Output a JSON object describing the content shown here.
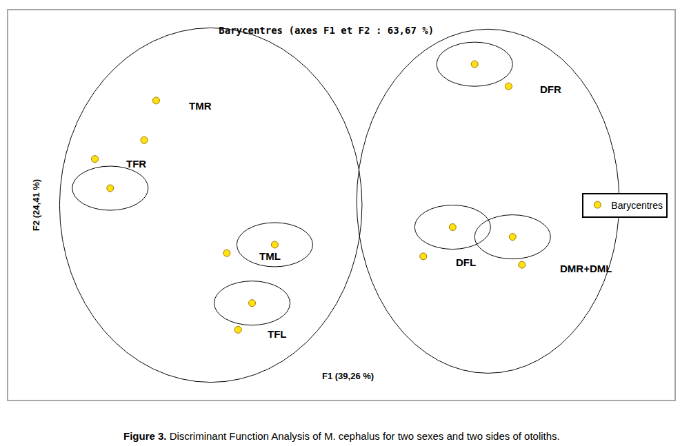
{
  "chart_data": {
    "type": "scatter",
    "title": "Barycentres (axes F1 et F2 : 63,67 %)",
    "x_label": "F1 (39,26 %)",
    "y_label": "F2 (24,41 %)",
    "caption": {
      "label": "Figure 3.",
      "text": "Discriminant Function Analysis of M. cephalus for two sexes and two sides of otoliths."
    },
    "xlim": [
      -5,
      5
    ],
    "ylim": [
      -3,
      3
    ],
    "tick_labels": false,
    "grid": false,
    "legend": "right",
    "series": [
      {
        "name": "Barycentres",
        "color": "#ffe011",
        "marker": "circle",
        "x": [
          -2.78,
          -2.96,
          -3.7,
          -3.47,
          -1.72,
          -1.0,
          -1.34,
          -1.55,
          2.0,
          2.51,
          1.67,
          1.23,
          2.57,
          2.71
        ],
        "values": [
          1.61,
          1.0,
          0.71,
          0.26,
          -0.74,
          -0.61,
          -1.51,
          -1.92,
          2.17,
          1.83,
          -0.34,
          -0.79,
          -0.49,
          -0.92
        ]
      }
    ],
    "ellipses": [
      {
        "x": -1.96,
        "y": 0.0,
        "rx": 2.27,
        "ry": 2.73
      },
      {
        "x": 2.2,
        "y": 0.06,
        "rx": 1.97,
        "ry": 2.65
      },
      {
        "x": -3.47,
        "y": 0.26,
        "rx": 0.57,
        "ry": 0.34
      },
      {
        "x": -1.0,
        "y": -0.61,
        "rx": 0.57,
        "ry": 0.34
      },
      {
        "x": -1.34,
        "y": -1.51,
        "rx": 0.57,
        "ry": 0.34
      },
      {
        "x": 2.0,
        "y": 2.17,
        "rx": 0.57,
        "ry": 0.34
      },
      {
        "x": 1.67,
        "y": -0.34,
        "rx": 0.57,
        "ry": 0.34
      },
      {
        "x": 2.57,
        "y": -0.49,
        "rx": 0.57,
        "ry": 0.34
      }
    ],
    "annotations": [
      {
        "text": "TMR",
        "x": -2.12,
        "y": 1.53
      },
      {
        "text": "TFR",
        "x": -3.08,
        "y": 0.64
      },
      {
        "text": "TML",
        "x": -1.07,
        "y": -0.79
      },
      {
        "text": "TFL",
        "x": -0.96,
        "y": -1.99
      },
      {
        "text": "DFR",
        "x": 3.14,
        "y": 1.78
      },
      {
        "text": "DFL",
        "x": 1.87,
        "y": -0.88
      },
      {
        "text": "DMR+DML",
        "x": 3.67,
        "y": -0.98
      }
    ]
  }
}
